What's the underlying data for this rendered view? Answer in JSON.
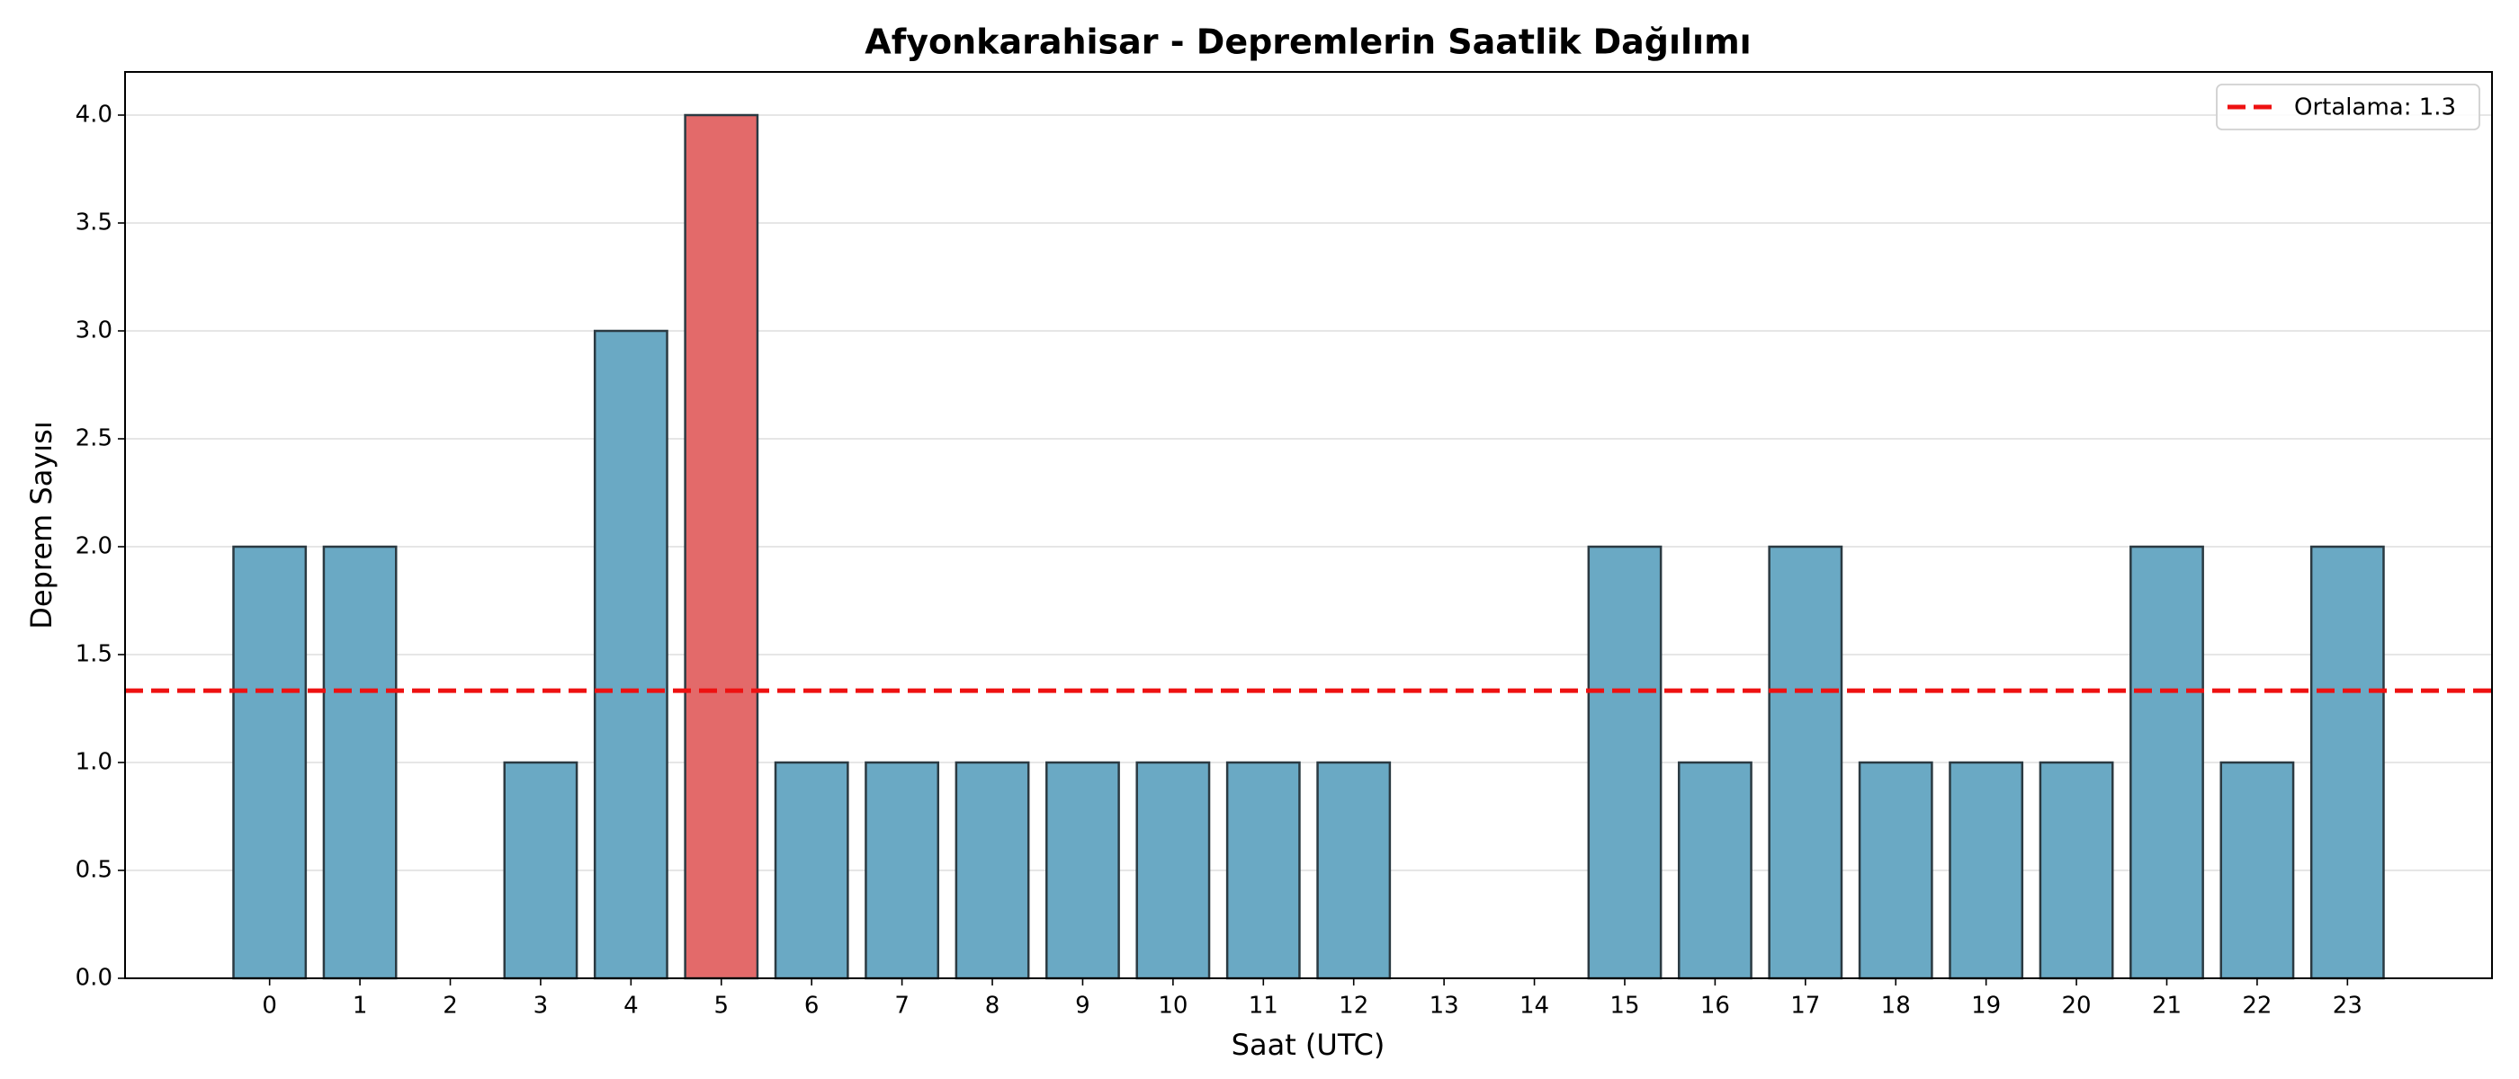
{
  "chart_data": {
    "type": "bar",
    "title": "Afyonkarahisar - Depremlerin Saatlik Dağılımı",
    "x_label": "Saat (UTC)",
    "y_label": "Deprem Sayısı",
    "x": [
      0,
      1,
      2,
      3,
      4,
      5,
      6,
      7,
      8,
      9,
      10,
      11,
      12,
      13,
      14,
      15,
      16,
      17,
      18,
      19,
      20,
      21,
      22,
      23
    ],
    "values": [
      2,
      2,
      0,
      1,
      3,
      4,
      1,
      1,
      1,
      1,
      1,
      1,
      1,
      0,
      0,
      2,
      1,
      2,
      1,
      1,
      1,
      2,
      1,
      2
    ],
    "colors": [
      "#6aa9c4",
      "#6aa9c4",
      "#6aa9c4",
      "#6aa9c4",
      "#6aa9c4",
      "#e36a6a",
      "#6aa9c4",
      "#6aa9c4",
      "#6aa9c4",
      "#6aa9c4",
      "#6aa9c4",
      "#6aa9c4",
      "#6aa9c4",
      "#6aa9c4",
      "#6aa9c4",
      "#6aa9c4",
      "#6aa9c4",
      "#6aa9c4",
      "#6aa9c4",
      "#6aa9c4",
      "#6aa9c4",
      "#6aa9c4",
      "#6aa9c4",
      "#6aa9c4"
    ],
    "mean_line": {
      "value": 1.333,
      "label": "Ortalama: 1.3",
      "color": "#ee1111"
    },
    "xlim": [
      -1.6,
      24.6
    ],
    "xticks": [
      0,
      1,
      2,
      3,
      4,
      5,
      6,
      7,
      8,
      9,
      10,
      11,
      12,
      13,
      14,
      15,
      16,
      17,
      18,
      19,
      20,
      21,
      22,
      23
    ],
    "ylim": [
      0,
      4.2
    ],
    "yticks": [
      {
        "value": 0,
        "label": "0.0"
      },
      {
        "value": 0.5,
        "label": "0.5"
      },
      {
        "value": 1,
        "label": "1.0"
      },
      {
        "value": 1.5,
        "label": "1.5"
      },
      {
        "value": 2,
        "label": "2.0"
      },
      {
        "value": 2.5,
        "label": "2.5"
      },
      {
        "value": 3,
        "label": "3.0"
      },
      {
        "value": 3.5,
        "label": "3.5"
      },
      {
        "value": 4,
        "label": "4.0"
      }
    ],
    "grid": true,
    "legend_position": "upper-right"
  }
}
